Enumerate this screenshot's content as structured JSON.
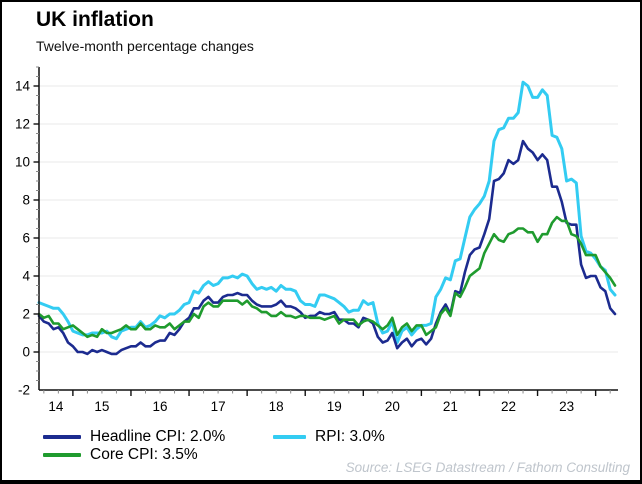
{
  "header": {
    "title": "UK inflation",
    "subtitle": "Twelve-month percentage changes"
  },
  "source": "Source: LSEG Datastream / Fathom Consulting",
  "legend": [
    {
      "id": "headline-cpi",
      "label": "Headline CPI: 2.0%",
      "color": "#1c2b8f"
    },
    {
      "id": "core-cpi",
      "label": "Core CPI: 3.5%",
      "color": "#1f9b2e"
    },
    {
      "id": "rpi",
      "label": "RPI: 3.0%",
      "color": "#33ccf2"
    }
  ],
  "colors": {
    "axis": "#111111",
    "gridline": "#e8e8ea",
    "minor_tick": "#8a8a8a",
    "tick_label": "#000000",
    "background": "#ffffff",
    "border": "#000000",
    "source_text": "#bfc5cc"
  },
  "chart_data": {
    "type": "line",
    "title": "UK inflation",
    "subtitle": "Twelve-month percentage changes",
    "frequency": "monthly",
    "x_start": "2014-06",
    "x_end": "2024-05",
    "xlabel": "",
    "ylabel": "Twelve-month percentage change",
    "ylim": [
      -2,
      15
    ],
    "yticks": [
      -2,
      0,
      2,
      4,
      6,
      8,
      10,
      12,
      14
    ],
    "xtick_year_labels": [
      "14",
      "15",
      "16",
      "17",
      "18",
      "19",
      "20",
      "21",
      "22",
      "23"
    ],
    "grid": "horizontal",
    "legend_position": "bottom",
    "series": [
      {
        "name": "Headline CPI",
        "last_value_label": "2.0%",
        "color": "#1c2b8f",
        "values": [
          1.9,
          1.6,
          1.5,
          1.2,
          1.3,
          1.0,
          0.5,
          0.3,
          0.0,
          0.0,
          -0.1,
          0.1,
          0.0,
          0.1,
          0.0,
          -0.1,
          -0.1,
          0.1,
          0.2,
          0.3,
          0.3,
          0.5,
          0.3,
          0.3,
          0.5,
          0.6,
          0.6,
          1.0,
          0.9,
          1.2,
          1.6,
          1.8,
          2.3,
          2.3,
          2.7,
          2.9,
          2.6,
          2.6,
          2.9,
          3.0,
          3.0,
          3.1,
          3.0,
          3.0,
          2.7,
          2.5,
          2.4,
          2.4,
          2.4,
          2.5,
          2.7,
          2.4,
          2.4,
          2.3,
          2.1,
          1.8,
          1.9,
          1.9,
          2.1,
          2.0,
          2.0,
          2.1,
          1.7,
          1.7,
          1.5,
          1.5,
          1.3,
          1.8,
          1.7,
          1.5,
          0.8,
          0.5,
          0.6,
          1.0,
          0.2,
          0.5,
          0.7,
          0.3,
          0.6,
          0.7,
          0.4,
          0.7,
          1.5,
          2.1,
          2.5,
          2.0,
          3.2,
          3.1,
          4.2,
          5.1,
          5.4,
          5.5,
          6.2,
          7.0,
          9.0,
          9.1,
          9.4,
          10.1,
          9.9,
          10.1,
          11.1,
          10.7,
          10.5,
          10.1,
          10.4,
          10.1,
          8.7,
          8.7,
          7.9,
          6.8,
          6.7,
          6.7,
          4.6,
          3.9,
          4.0,
          4.0,
          3.4,
          3.2,
          2.3,
          2.0
        ]
      },
      {
        "name": "Core CPI",
        "last_value_label": "3.5%",
        "color": "#1f9b2e",
        "values": [
          2.0,
          1.8,
          1.9,
          1.5,
          1.5,
          1.2,
          1.3,
          1.4,
          1.2,
          1.0,
          0.8,
          0.9,
          0.8,
          1.2,
          1.0,
          1.0,
          1.1,
          1.2,
          1.4,
          1.2,
          1.2,
          1.5,
          1.2,
          1.2,
          1.4,
          1.3,
          1.3,
          1.5,
          1.2,
          1.4,
          1.6,
          1.6,
          2.0,
          1.8,
          2.4,
          2.6,
          2.4,
          2.4,
          2.7,
          2.7,
          2.7,
          2.7,
          2.5,
          2.7,
          2.4,
          2.3,
          2.1,
          2.1,
          1.9,
          1.9,
          2.1,
          1.9,
          1.9,
          1.8,
          1.9,
          1.9,
          1.8,
          1.8,
          1.8,
          1.7,
          1.8,
          1.9,
          1.5,
          1.7,
          1.7,
          1.7,
          1.4,
          1.6,
          1.7,
          1.6,
          1.4,
          1.2,
          1.4,
          1.8,
          0.9,
          1.3,
          1.5,
          1.1,
          1.4,
          1.4,
          0.9,
          1.1,
          1.3,
          2.0,
          2.3,
          1.9,
          3.1,
          2.9,
          3.4,
          4.0,
          4.2,
          4.4,
          5.2,
          5.7,
          6.2,
          5.9,
          5.8,
          6.2,
          6.3,
          6.5,
          6.5,
          6.3,
          6.3,
          5.8,
          6.2,
          6.2,
          6.8,
          7.1,
          6.9,
          6.9,
          6.2,
          6.1,
          5.7,
          5.1,
          5.1,
          5.1,
          4.5,
          4.2,
          3.9,
          3.5
        ]
      },
      {
        "name": "RPI",
        "last_value_label": "3.0%",
        "color": "#33ccf2",
        "values": [
          2.6,
          2.5,
          2.4,
          2.3,
          2.3,
          2.0,
          1.6,
          1.1,
          1.0,
          0.9,
          0.9,
          1.0,
          1.0,
          1.0,
          1.1,
          0.8,
          0.7,
          1.1,
          1.2,
          1.3,
          1.3,
          1.6,
          1.3,
          1.4,
          1.6,
          1.9,
          1.8,
          2.0,
          2.0,
          2.2,
          2.5,
          2.6,
          3.2,
          3.1,
          3.5,
          3.7,
          3.5,
          3.6,
          3.9,
          3.9,
          4.0,
          3.9,
          4.1,
          4.0,
          3.6,
          3.3,
          3.4,
          3.3,
          3.4,
          3.2,
          3.5,
          3.3,
          3.3,
          3.2,
          2.7,
          2.5,
          2.5,
          2.4,
          3.0,
          3.0,
          2.9,
          2.8,
          2.6,
          2.4,
          2.1,
          2.2,
          2.2,
          2.7,
          2.5,
          2.6,
          1.5,
          1.0,
          1.1,
          1.6,
          0.5,
          1.1,
          1.3,
          0.9,
          1.2,
          1.4,
          1.4,
          1.5,
          2.9,
          3.3,
          3.9,
          3.8,
          4.8,
          4.9,
          6.0,
          7.1,
          7.5,
          7.8,
          8.2,
          9.0,
          11.1,
          11.7,
          11.8,
          12.3,
          12.3,
          12.6,
          14.2,
          14.0,
          13.4,
          13.4,
          13.8,
          13.5,
          11.4,
          11.3,
          10.7,
          9.0,
          9.1,
          8.9,
          6.1,
          5.3,
          5.2,
          4.9,
          4.5,
          4.3,
          3.3,
          3.0
        ]
      }
    ]
  }
}
